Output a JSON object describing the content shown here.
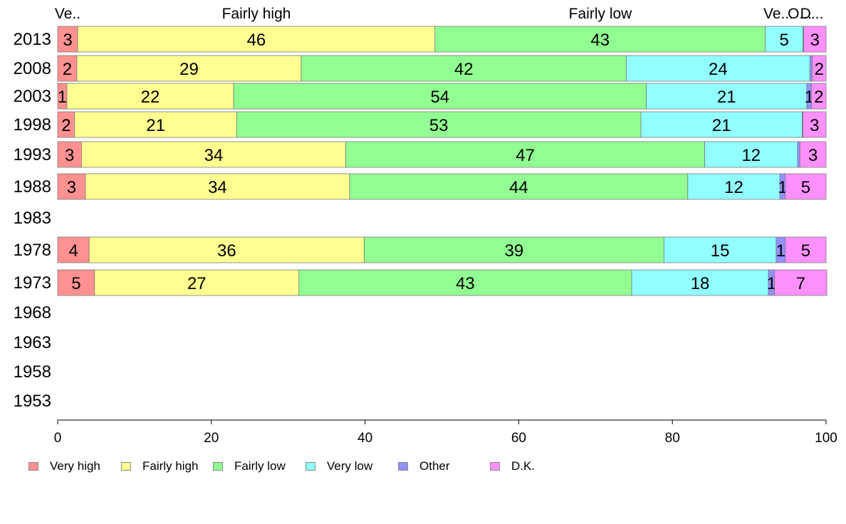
{
  "chart_data": {
    "type": "bar",
    "orientation": "horizontal",
    "stacked": true,
    "xlim": [
      0,
      100
    ],
    "x_ticks": [
      "0",
      "20",
      "40",
      "60",
      "80",
      "100"
    ],
    "categories": [
      "2013",
      "2008",
      "2003",
      "1998",
      "1993",
      "1988",
      "1983",
      "1978",
      "1973",
      "1968",
      "1963",
      "1958",
      "1953"
    ],
    "series": [
      {
        "name": "Very high",
        "color": "#ff9191",
        "values": [
          3,
          2,
          1,
          2,
          3,
          3,
          null,
          4,
          5,
          null,
          null,
          null,
          null
        ],
        "plot_values": [
          2.6,
          2.5,
          1.2,
          2.2,
          3.1,
          3.6,
          null,
          4.1,
          4.8,
          null,
          null,
          null,
          null
        ]
      },
      {
        "name": "Fairly high",
        "color": "#ffff91",
        "values": [
          46,
          29,
          22,
          21,
          34,
          34,
          null,
          36,
          27,
          null,
          null,
          null,
          null
        ],
        "plot_values": [
          46.5,
          29.2,
          21.7,
          21.1,
          34.4,
          34.4,
          null,
          35.8,
          26.6,
          null,
          null,
          null,
          null
        ]
      },
      {
        "name": "Fairly low",
        "color": "#91ff91",
        "values": [
          43,
          42,
          54,
          53,
          47,
          44,
          null,
          39,
          43,
          null,
          null,
          null,
          null
        ],
        "plot_values": [
          43.0,
          42.3,
          53.7,
          52.6,
          46.7,
          44.0,
          null,
          39.0,
          43.3,
          null,
          null,
          null,
          null
        ]
      },
      {
        "name": "Very low",
        "color": "#91ffff",
        "values": [
          5,
          24,
          21,
          21,
          12,
          12,
          null,
          15,
          18,
          null,
          null,
          null,
          null
        ],
        "plot_values": [
          4.9,
          23.9,
          20.9,
          21.0,
          12.1,
          12.0,
          null,
          14.6,
          17.8,
          null,
          null,
          null,
          null
        ]
      },
      {
        "name": "Other",
        "color": "#9191ff",
        "values": [
          0,
          0,
          1,
          0,
          0,
          1,
          null,
          1,
          1,
          null,
          null,
          null,
          null
        ],
        "plot_values": [
          0.1,
          0.3,
          0.6,
          0.1,
          0.3,
          0.7,
          null,
          1.2,
          0.8,
          null,
          null,
          null,
          null
        ]
      },
      {
        "name": "D.K.",
        "color": "#ff91ff",
        "values": [
          3,
          2,
          2,
          3,
          3,
          5,
          null,
          5,
          7,
          null,
          null,
          null,
          null
        ],
        "plot_values": [
          2.9,
          1.8,
          1.9,
          3.0,
          3.4,
          5.3,
          null,
          5.3,
          6.8,
          null,
          null,
          null,
          null
        ]
      }
    ],
    "label_overrides": {
      "2013": [
        "3",
        "46",
        "43",
        "5",
        "",
        "3"
      ],
      "2008": [
        "2",
        "29",
        "42",
        "24",
        "",
        "2"
      ],
      "2003": [
        "1",
        "22",
        "54",
        "21",
        "1",
        "2"
      ],
      "1998": [
        "2",
        "21",
        "53",
        "21",
        "",
        "3"
      ],
      "1993": [
        "3",
        "34",
        "47",
        "12",
        "",
        "3"
      ],
      "1988": [
        "3",
        "34",
        "44",
        "12",
        "1",
        "5"
      ],
      "1978": [
        "4",
        "36",
        "39",
        "15",
        "1",
        "5"
      ],
      "1973": [
        "5",
        "27",
        "43",
        "18",
        "1",
        "7"
      ]
    },
    "top_labels": [
      "Ve..",
      "Fairly high",
      "Fairly low",
      "Ve...",
      "O...",
      "D..."
    ],
    "legend": [
      "Very high",
      "Fairly high",
      "Fairly low",
      "Very low",
      "Other",
      "D.K."
    ],
    "legend_position": "bottom",
    "title": "",
    "xlabel": "",
    "ylabel": "",
    "grid": false
  }
}
